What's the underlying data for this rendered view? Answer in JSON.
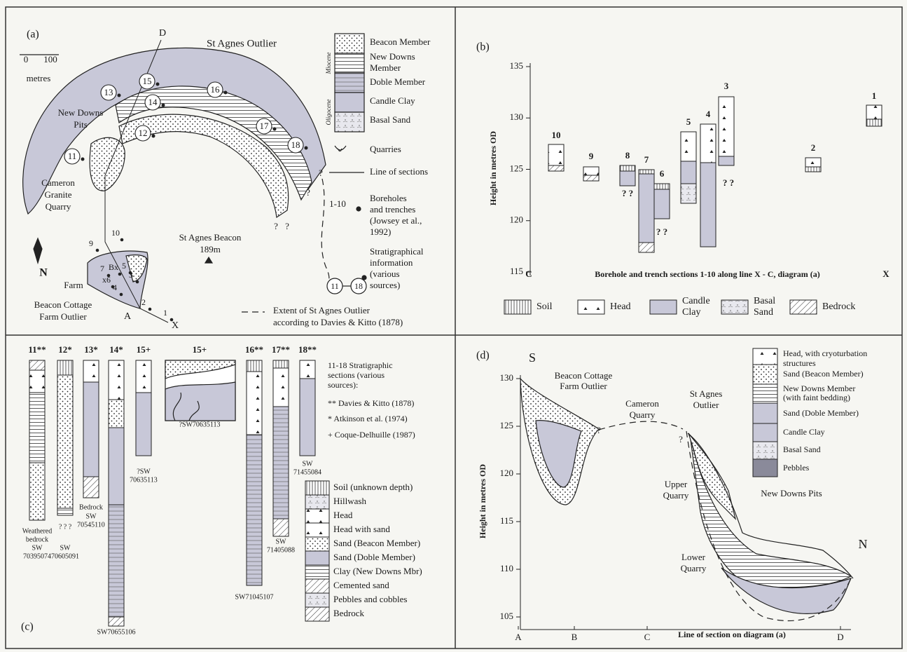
{
  "a": {
    "label": "(a)",
    "title": "St Agnes Outlier",
    "scale": {
      "zero": "0",
      "hundred": "100",
      "unit": "metres"
    },
    "north": "N",
    "line_ends": [
      "D",
      "A",
      "X"
    ],
    "sites": [
      "13",
      "15",
      "14",
      "16",
      "12",
      "17",
      "18",
      "11"
    ],
    "boreholes": [
      "10",
      "9",
      "Bx",
      "7",
      "5",
      "3",
      "x6",
      "4",
      "2",
      "1"
    ],
    "places": {
      "new_downs": [
        "New Downs",
        "Pits"
      ],
      "cameron": [
        "Cameron",
        "Granite",
        "Quarry"
      ],
      "farm": "Farm",
      "beacon_cottage": [
        "Beacon Cottage",
        "Farm Outlier"
      ],
      "beacon": [
        "St Agnes Beacon",
        "189m"
      ]
    },
    "queries": [
      "?",
      "?",
      "?",
      "?"
    ],
    "legend": {
      "units": [
        [
          "Beacon Member"
        ],
        [
          "New Downs",
          "Member"
        ],
        [
          "Doble Member"
        ],
        [
          "Candle Clay"
        ],
        [
          "Basal Sand"
        ]
      ],
      "epochs": [
        "Miocene",
        "Oligocene"
      ],
      "quarries": "Quarries",
      "sections": "Line of sections",
      "boreholes": {
        "range": "1-10",
        "text": [
          "Boreholes",
          "and trenches",
          "(Jowsey et al.,",
          "1992)"
        ]
      },
      "strat": {
        "text": [
          "Stratigraphical",
          "information",
          "(various",
          "sources)"
        ],
        "from": "11",
        "to": "18"
      },
      "extent": [
        "Extent of St Agnes Outlier",
        "according to Davies & Kitto (1878)"
      ]
    }
  },
  "b": {
    "label": "(b)",
    "y_label": "Height in metres OD",
    "ylim": [
      115,
      135
    ],
    "yticks": [
      115,
      120,
      125,
      130,
      135
    ],
    "x_ends": [
      "C",
      "X"
    ],
    "x_label": "Borehole and trench sections 1-10 along line X - C, diagram (a)",
    "sections": [
      "10",
      "9",
      "8",
      "7",
      "6",
      "5",
      "4",
      "3",
      "2",
      "1"
    ],
    "unknown": [
      "? ?",
      "? ?",
      "? ?"
    ],
    "legend": [
      [
        "Soil"
      ],
      [
        "Head"
      ],
      [
        "Candle",
        "Clay"
      ],
      [
        "Basal",
        "Sand"
      ],
      [
        "Bedrock"
      ]
    ]
  },
  "c": {
    "label": "(c)",
    "columns": [
      "11**",
      "12*",
      "13*",
      "14*",
      "15+",
      "15+",
      "16**",
      "17**",
      "18**"
    ],
    "refs": [
      [
        "Weathered",
        "bedrock"
      ],
      [
        "SW",
        "70395074"
      ],
      [
        "? ? ?"
      ],
      [
        "SW",
        "70605091"
      ],
      [
        "Bedrock"
      ],
      [
        "SW",
        "70545110"
      ],
      [
        "SW70655106"
      ],
      [
        "?SW",
        "70635113"
      ],
      [
        "?SW70635113"
      ],
      [
        "SW71045107"
      ],
      [
        "SW",
        "71405088"
      ],
      [
        "SW",
        "71455084"
      ]
    ],
    "notes": {
      "title": [
        "11-18 Stratigraphic",
        "sections (various",
        "sources):"
      ],
      "sources": [
        "** Davies & Kitto (1878)",
        "* Atkinson et al. (1974)",
        "+ Coque-Delhuille (1987)"
      ]
    },
    "legend": [
      "Soil (unknown depth)",
      "Hillwash",
      "Head",
      "Head with sand",
      "Sand (Beacon Member)",
      "Sand (Doble Member)",
      "Clay (New Downs Mbr)",
      "Cemented sand",
      "Pebbles and cobbles",
      "Bedrock"
    ]
  },
  "d": {
    "label": "(d)",
    "ends": [
      "S",
      "N"
    ],
    "places": {
      "beacon_cottage": [
        "Beacon Cottage",
        "Farm Outlier"
      ],
      "cameron": [
        "Cameron",
        "Quarry"
      ],
      "outlier": [
        "St Agnes",
        "Outlier"
      ],
      "upper": [
        "Upper",
        "Quarry"
      ],
      "lower": [
        "Lower",
        "Quarry"
      ],
      "pits": "New Downs Pits"
    },
    "y_label": "Height in metres OD",
    "ylim": [
      105,
      130
    ],
    "yticks": [
      105,
      110,
      115,
      120,
      125,
      130
    ],
    "x_points": [
      "A",
      "B",
      "C",
      "D"
    ],
    "x_label": "Line of section on diagram (a)",
    "queries": [
      "?",
      "?"
    ],
    "legend": [
      [
        "Head, with cryoturbation",
        "structures"
      ],
      [
        "Sand (Beacon Member)"
      ],
      [
        "New Downs Member",
        "(with faint bedding)"
      ],
      [
        "Sand (Doble Member)"
      ],
      [
        "Candle Clay"
      ],
      [
        "Basal Sand"
      ],
      [
        "Pebbles"
      ]
    ]
  }
}
